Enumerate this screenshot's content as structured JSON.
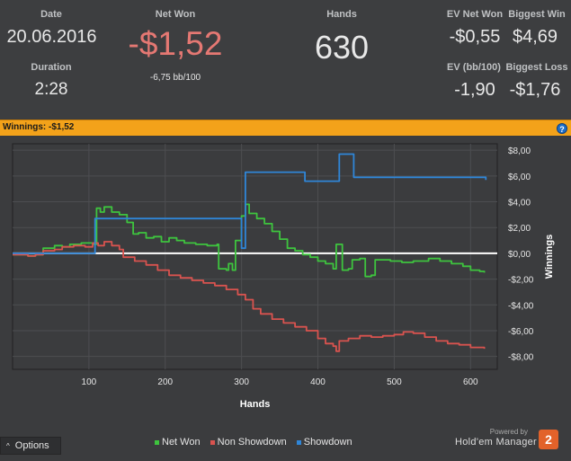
{
  "stats": {
    "date_label": "Date",
    "date_value": "20.06.2016",
    "duration_label": "Duration",
    "duration_value": "2:28",
    "netwon_label": "Net Won",
    "netwon_value": "-$1,52",
    "netwon_sub": "-6,75 bb/100",
    "hands_label": "Hands",
    "hands_value": "630",
    "ev_net_won_label": "EV Net Won",
    "ev_net_won_value": "-$0,55",
    "biggest_win_label": "Biggest Win",
    "biggest_win_value": "$4,69",
    "ev_bb_label": "EV (bb/100)",
    "ev_bb_value": "-1,90",
    "biggest_loss_label": "Biggest Loss",
    "biggest_loss_value": "-$1,76",
    "netwon_color": "#e57873"
  },
  "winnings_bar": {
    "label": "Winnings:",
    "value": "-$1,52",
    "help_glyph": "?",
    "color": "#f3a21a"
  },
  "chart_data": {
    "type": "line",
    "title": "",
    "xlabel": "Hands",
    "ylabel": "Winnings",
    "xlim": [
      0,
      635
    ],
    "ylim": [
      -9,
      8.5
    ],
    "xticks": [
      100,
      200,
      300,
      400,
      500,
      600
    ],
    "xtick_labels": [
      "100",
      "200",
      "300",
      "400",
      "500",
      "600"
    ],
    "yticks": [
      8,
      6,
      4,
      2,
      0,
      -2,
      -4,
      -6,
      -8
    ],
    "ytick_labels": [
      "$8,00",
      "$6,00",
      "$4,00",
      "$2,00",
      "$0,00",
      "-$2,00",
      "-$4,00",
      "-$6,00",
      "-$8,00"
    ],
    "grid": true,
    "legend_position": "bottom",
    "series": [
      {
        "name": "Net Won",
        "color": "#3ec43e",
        "points": [
          [
            0,
            -0.1
          ],
          [
            20,
            -0.2
          ],
          [
            30,
            -0.1
          ],
          [
            40,
            0.4
          ],
          [
            55,
            0.6
          ],
          [
            65,
            0.5
          ],
          [
            75,
            0.7
          ],
          [
            90,
            0.8
          ],
          [
            105,
            0.7
          ],
          [
            110,
            3.5
          ],
          [
            115,
            3.2
          ],
          [
            120,
            3.6
          ],
          [
            130,
            3.2
          ],
          [
            140,
            3.0
          ],
          [
            150,
            2.4
          ],
          [
            158,
            1.5
          ],
          [
            165,
            1.6
          ],
          [
            175,
            1.2
          ],
          [
            185,
            1.3
          ],
          [
            195,
            0.9
          ],
          [
            205,
            1.2
          ],
          [
            215,
            1.0
          ],
          [
            225,
            0.8
          ],
          [
            240,
            0.7
          ],
          [
            255,
            0.6
          ],
          [
            268,
            0.7
          ],
          [
            270,
            -1.2
          ],
          [
            280,
            -1.3
          ],
          [
            283,
            -0.8
          ],
          [
            288,
            -1.3
          ],
          [
            292,
            1.0
          ],
          [
            296,
            1.0
          ],
          [
            300,
            2.9
          ],
          [
            305,
            3.8
          ],
          [
            310,
            3.1
          ],
          [
            320,
            2.7
          ],
          [
            330,
            2.3
          ],
          [
            340,
            1.7
          ],
          [
            350,
            1.1
          ],
          [
            360,
            0.4
          ],
          [
            370,
            0.2
          ],
          [
            380,
            -0.1
          ],
          [
            390,
            -0.3
          ],
          [
            400,
            -0.6
          ],
          [
            410,
            -0.8
          ],
          [
            420,
            -1.2
          ],
          [
            424,
            0.7
          ],
          [
            428,
            0.7
          ],
          [
            432,
            -1.3
          ],
          [
            440,
            -1.2
          ],
          [
            445,
            -0.5
          ],
          [
            455,
            -0.4
          ],
          [
            462,
            -1.8
          ],
          [
            470,
            -1.7
          ],
          [
            475,
            -0.5
          ],
          [
            495,
            -0.6
          ],
          [
            510,
            -0.7
          ],
          [
            525,
            -0.6
          ],
          [
            545,
            -0.4
          ],
          [
            560,
            -0.6
          ],
          [
            575,
            -0.8
          ],
          [
            590,
            -1.0
          ],
          [
            600,
            -1.3
          ],
          [
            612,
            -1.4
          ],
          [
            618,
            -1.5
          ]
        ]
      },
      {
        "name": "Non Showdown",
        "color": "#d9534f",
        "points": [
          [
            0,
            -0.1
          ],
          [
            20,
            -0.2
          ],
          [
            30,
            -0.1
          ],
          [
            40,
            0.2
          ],
          [
            55,
            0.3
          ],
          [
            65,
            0.5
          ],
          [
            80,
            0.6
          ],
          [
            95,
            0.5
          ],
          [
            105,
            0.8
          ],
          [
            112,
            0.6
          ],
          [
            120,
            0.9
          ],
          [
            130,
            0.6
          ],
          [
            140,
            0.3
          ],
          [
            145,
            -0.3
          ],
          [
            160,
            -0.6
          ],
          [
            175,
            -0.9
          ],
          [
            190,
            -1.3
          ],
          [
            205,
            -1.7
          ],
          [
            220,
            -1.9
          ],
          [
            235,
            -2.1
          ],
          [
            250,
            -2.3
          ],
          [
            265,
            -2.5
          ],
          [
            280,
            -2.8
          ],
          [
            295,
            -3.2
          ],
          [
            305,
            -3.6
          ],
          [
            315,
            -4.3
          ],
          [
            325,
            -4.7
          ],
          [
            340,
            -5.1
          ],
          [
            355,
            -5.4
          ],
          [
            370,
            -5.7
          ],
          [
            385,
            -6.0
          ],
          [
            400,
            -6.6
          ],
          [
            410,
            -7.0
          ],
          [
            420,
            -7.2
          ],
          [
            424,
            -7.6
          ],
          [
            428,
            -6.8
          ],
          [
            440,
            -6.6
          ],
          [
            455,
            -6.4
          ],
          [
            470,
            -6.5
          ],
          [
            485,
            -6.4
          ],
          [
            500,
            -6.3
          ],
          [
            512,
            -6.1
          ],
          [
            525,
            -6.2
          ],
          [
            540,
            -6.5
          ],
          [
            555,
            -6.8
          ],
          [
            570,
            -7.0
          ],
          [
            585,
            -7.1
          ],
          [
            600,
            -7.3
          ],
          [
            618,
            -7.4
          ]
        ]
      },
      {
        "name": "Showdown",
        "color": "#2f86d8",
        "points": [
          [
            0,
            0
          ],
          [
            105,
            0
          ],
          [
            108,
            2.7
          ],
          [
            300,
            2.7
          ],
          [
            300,
            0.4
          ],
          [
            303,
            0.4
          ],
          [
            305,
            6.3
          ],
          [
            380,
            6.3
          ],
          [
            383,
            5.6
          ],
          [
            425,
            5.6
          ],
          [
            428,
            7.7
          ],
          [
            445,
            7.7
          ],
          [
            447,
            5.9
          ],
          [
            620,
            5.7
          ]
        ]
      }
    ]
  },
  "options": {
    "label": "Options",
    "caret": "^"
  },
  "branding": {
    "powered_by": "Powered by",
    "product": "Hold'em Manager",
    "logo_text": "2",
    "logo_color": "#e2622a"
  }
}
